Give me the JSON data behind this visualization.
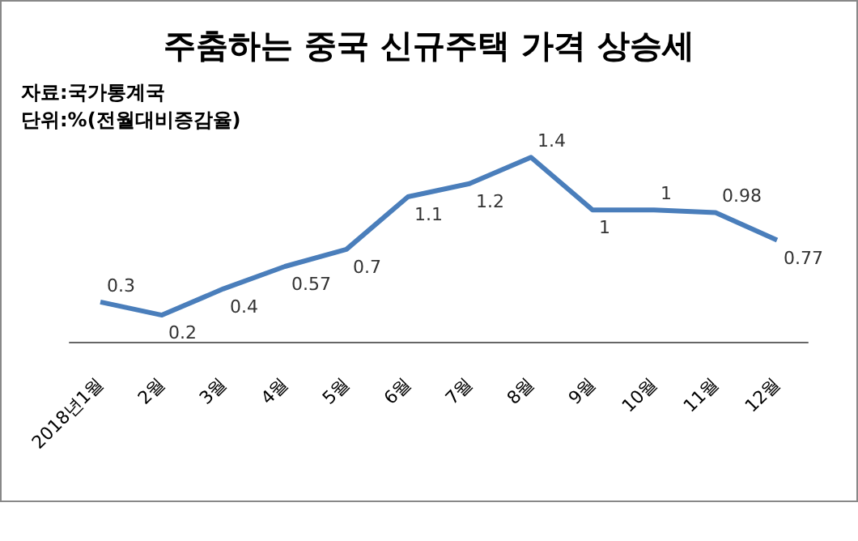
{
  "chart_data": {
    "type": "line",
    "title": "주춤하는 중국 신규주택 가격 상승세",
    "annotations": [
      "자료:국가통계국",
      "단위:%(전월대비증감율)"
    ],
    "categories": [
      "2018년1월",
      "2월",
      "3월",
      "4월",
      "5월",
      "6월",
      "7월",
      "8월",
      "9월",
      "10월",
      "11월",
      "12월"
    ],
    "series": [
      {
        "color": "#4a7ebb",
        "values": [
          0.3,
          0.2,
          0.4,
          0.57,
          0.7,
          1.1,
          1.2,
          1.4,
          1,
          1,
          0.98,
          0.77
        ]
      }
    ],
    "data_labels": true,
    "marker": "none",
    "line_style": "solid",
    "grid": false
  }
}
